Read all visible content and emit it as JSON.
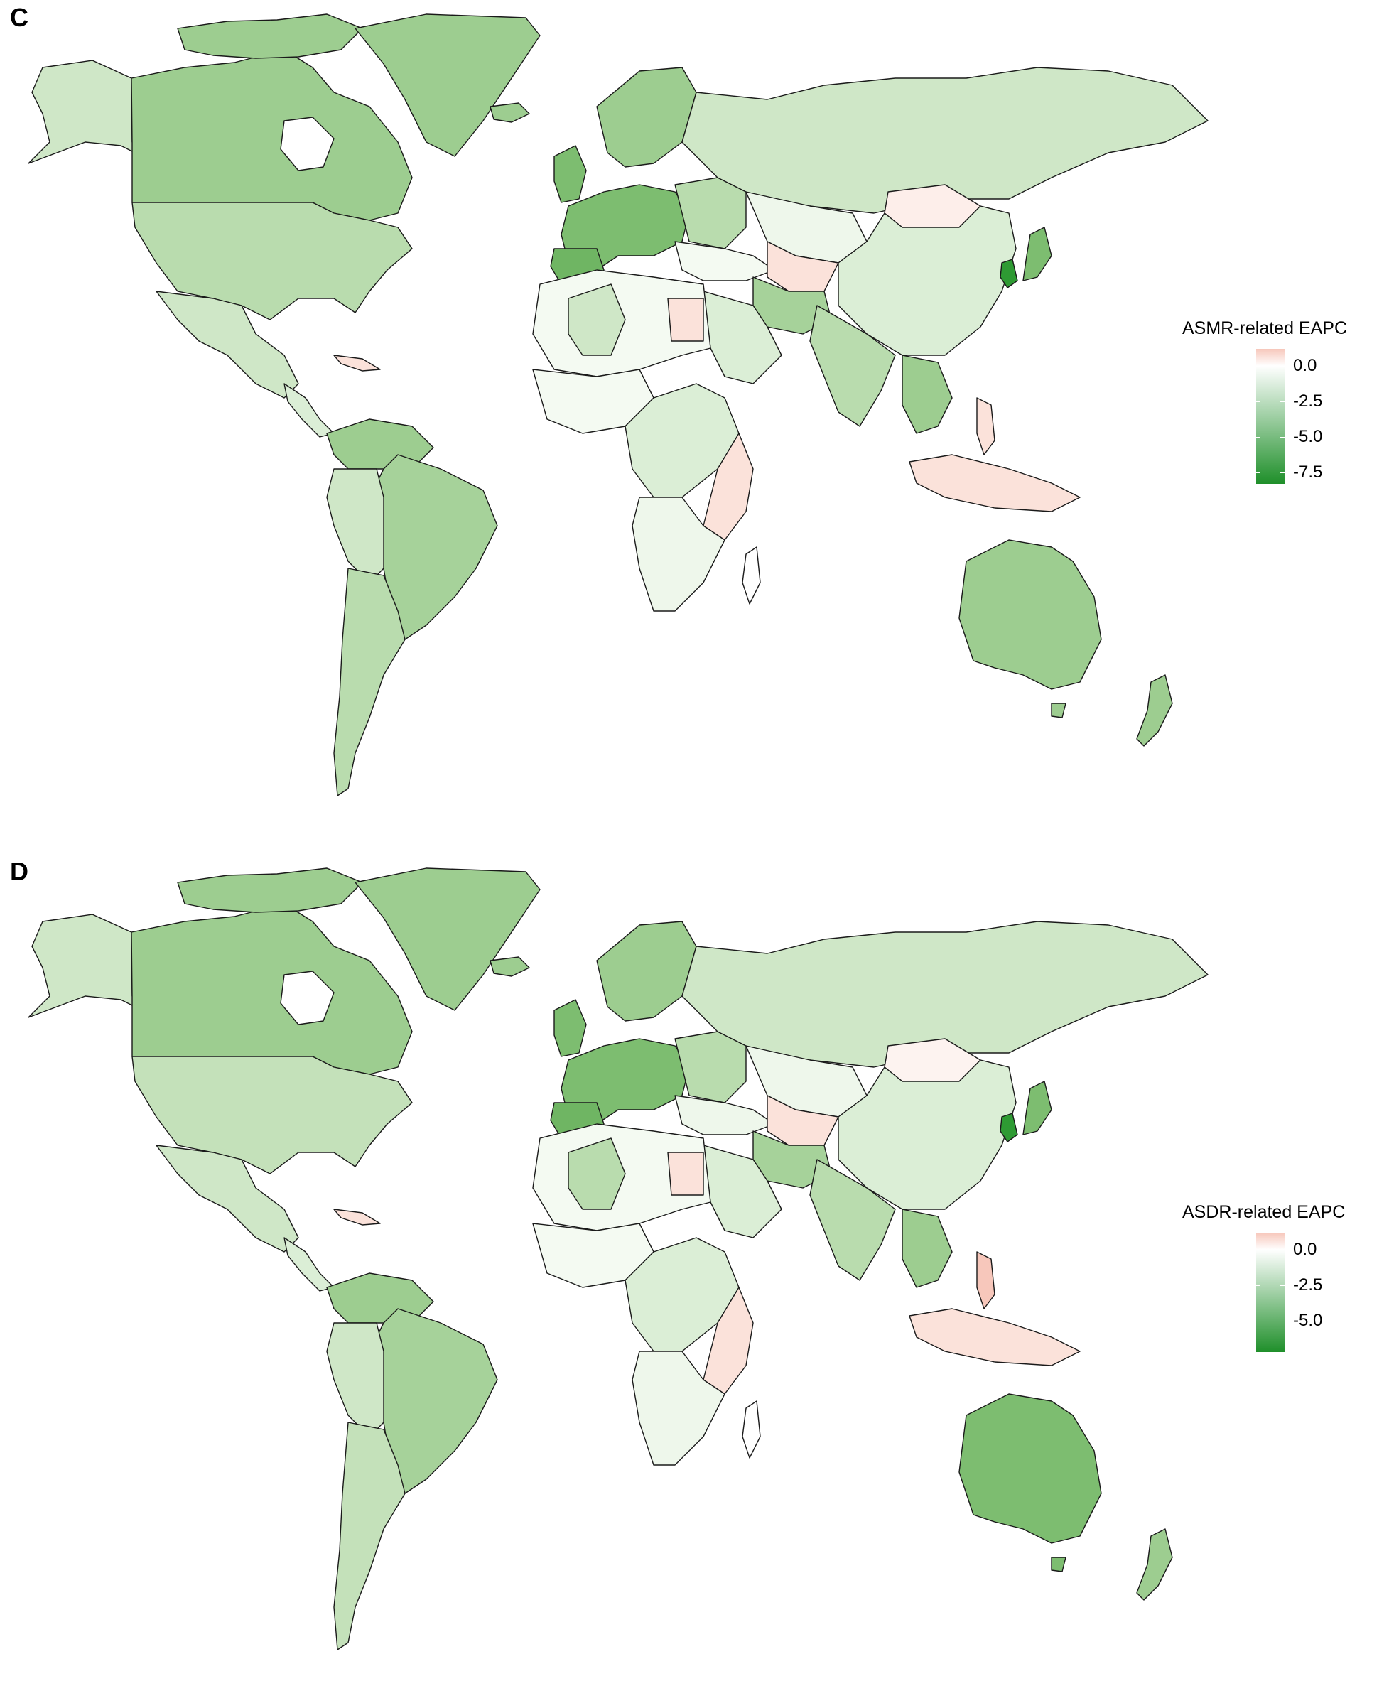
{
  "panels": [
    {
      "letter": "C",
      "legend": {
        "title": "ASMR-related EAPC",
        "ticks": [
          {
            "label": "0.0",
            "value": 0.0
          },
          {
            "label": "-2.5",
            "value": -2.5
          },
          {
            "label": "-5.0",
            "value": -5.0
          },
          {
            "label": "-7.5",
            "value": -7.5
          }
        ],
        "range": [
          -8.3,
          1.2
        ],
        "colors": {
          "high": "#f7c7bb",
          "mid": "#ffffff",
          "low": "#1f8f2a"
        }
      }
    },
    {
      "letter": "D",
      "legend": {
        "title": "ASDR-related EAPC",
        "ticks": [
          {
            "label": "0.0",
            "value": 0.0
          },
          {
            "label": "-2.5",
            "value": -2.5
          },
          {
            "label": "-5.0",
            "value": -5.0
          }
        ],
        "range": [
          -7.2,
          1.2
        ],
        "colors": {
          "high": "#f7c7bb",
          "mid": "#ffffff",
          "low": "#1f8f2a"
        }
      }
    }
  ],
  "map_colors": {
    "ocean": "#ffffff",
    "border": "#1a1a1a",
    "green_light": "#dbeed6",
    "green_mid": "#b9dcae",
    "green_medium": "#9dcd90",
    "green_dark": "#7dbd70",
    "green_deep": "#2e9a33",
    "near_white": "#f4faf2",
    "pink": "#fbe2da"
  }
}
